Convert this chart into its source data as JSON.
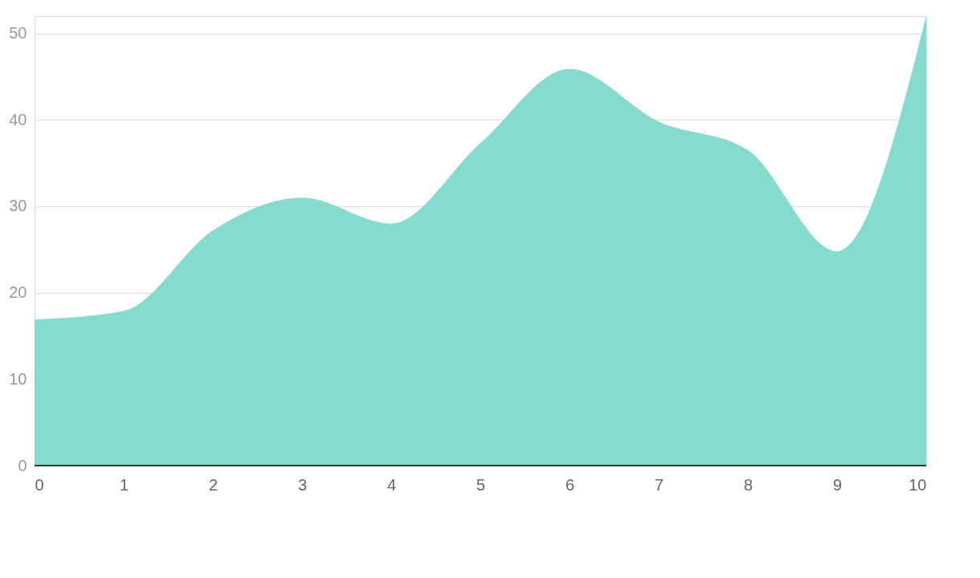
{
  "chart_data": {
    "type": "area",
    "x": [
      0,
      1,
      2,
      3,
      4,
      5,
      6,
      7,
      8,
      9,
      10
    ],
    "series": [
      {
        "color": "#83dccf",
        "values": [
          16.9,
          17.9,
          27.2,
          31,
          28,
          37.3,
          45.9,
          39.8,
          36.5,
          24.8,
          52
        ]
      }
    ],
    "xlim": [
      0,
      10
    ],
    "xticks": [
      0,
      1,
      2,
      3,
      4,
      5,
      6,
      7,
      8,
      9,
      10
    ],
    "ylim": [
      0,
      52
    ],
    "yticks": [
      0,
      10,
      20,
      30,
      40,
      50
    ],
    "grid": "y"
  }
}
